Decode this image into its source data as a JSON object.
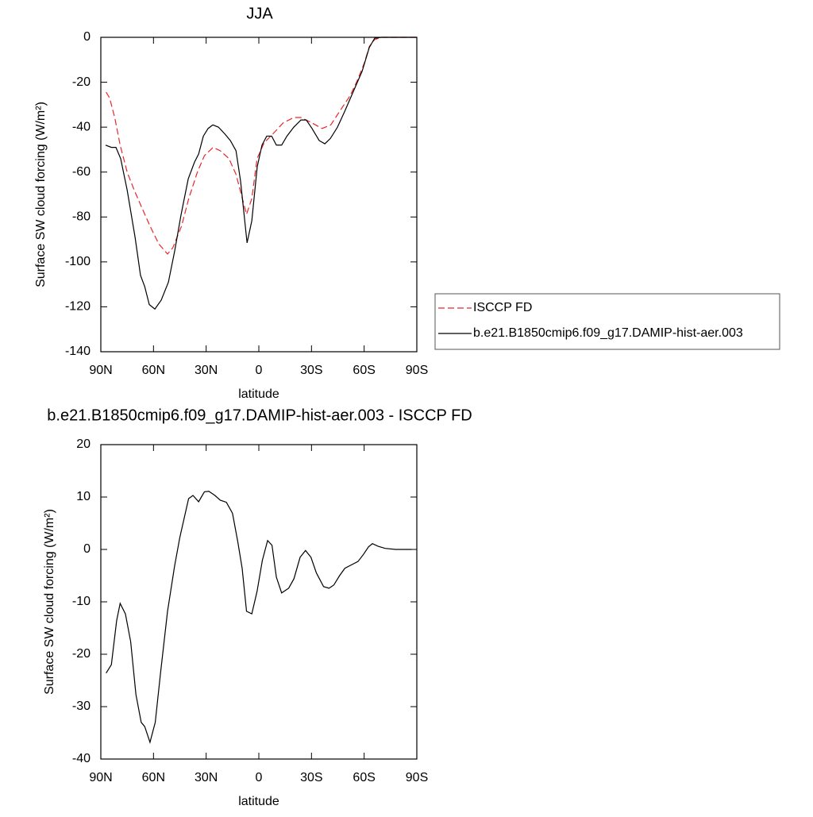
{
  "chart_data": [
    {
      "type": "line",
      "title": "JJA",
      "xlabel": "latitude",
      "ylabel": "Surface SW cloud forcing (W/m²)",
      "xlim": [
        90,
        -90
      ],
      "xticks": [
        {
          "value": 90,
          "label": "90N"
        },
        {
          "value": 60,
          "label": "60N"
        },
        {
          "value": 30,
          "label": "30N"
        },
        0,
        {
          "value": -30,
          "label": "30S"
        },
        {
          "value": -60,
          "label": "60S"
        },
        {
          "value": -90,
          "label": "90S"
        }
      ],
      "ylim": [
        -140,
        0
      ],
      "yticks": [
        0,
        -20,
        -40,
        -60,
        -80,
        -100,
        -120,
        -140
      ],
      "legend": "right",
      "series": [
        {
          "name": "ISCCP FD",
          "color": "#e8262a",
          "line_style": "dashed",
          "x": [
            87,
            85,
            82,
            79,
            75,
            71,
            66,
            62,
            57,
            52,
            49,
            44,
            40,
            35,
            31,
            26,
            22,
            17,
            13,
            10,
            7,
            4,
            1,
            -3,
            -8,
            -14,
            -20,
            -24,
            -30,
            -36,
            -41,
            -46,
            -52,
            -56,
            -60,
            -63,
            -66,
            -70,
            -90
          ],
          "values": [
            -24.4,
            -27,
            -36,
            -48,
            -60,
            -68,
            -77,
            -84,
            -92,
            -96.5,
            -93.7,
            -84,
            -72,
            -60,
            -52.7,
            -49,
            -50.5,
            -54,
            -61,
            -70,
            -78.8,
            -71.8,
            -54,
            -47,
            -43,
            -38,
            -35.7,
            -35.7,
            -38,
            -40.6,
            -39,
            -33,
            -26,
            -19.4,
            -11.7,
            -4,
            -1,
            0,
            0
          ]
        },
        {
          "name": "b.e21.B1850cmip6.f09_g17.DAMIP-hist-aer.003",
          "color": "#000000",
          "line_style": "solid",
          "x": [
            87.3,
            84,
            81.4,
            78.7,
            75,
            70.5,
            67.4,
            65,
            62.4,
            59.2,
            55.6,
            51.5,
            47.9,
            44.3,
            40.2,
            36.6,
            34.3,
            31.6,
            28.9,
            26.2,
            23,
            19.4,
            16.2,
            13,
            10.4,
            6.7,
            4,
            0.9,
            -1.8,
            -4.5,
            -7.3,
            -10,
            -13,
            -16,
            -19.9,
            -24,
            -27,
            -30.3,
            -34.4,
            -37.6,
            -40.8,
            -44.8,
            -48.9,
            -53.9,
            -58.9,
            -62.9,
            -66,
            -69.7,
            -90
          ],
          "values": [
            -48,
            -49,
            -49,
            -54,
            -68,
            -89,
            -106,
            -111,
            -119,
            -121,
            -117,
            -109,
            -95,
            -79,
            -63,
            -55.5,
            -52,
            -44,
            -40.6,
            -39,
            -40,
            -43,
            -46,
            -50.5,
            -64,
            -91.5,
            -81.7,
            -57.6,
            -48,
            -44,
            -44,
            -48,
            -48,
            -44,
            -40,
            -36.8,
            -36.8,
            -40.6,
            -46,
            -47.4,
            -45,
            -40,
            -33,
            -24,
            -15,
            -4.6,
            -0.4,
            0,
            0
          ]
        }
      ]
    },
    {
      "type": "line",
      "title": "b.e21.B1850cmip6.f09_g17.DAMIP-hist-aer.003 - ISCCP FD",
      "xlabel": "latitude",
      "ylabel": "Surface SW cloud forcing (W/m²)",
      "xlim": [
        90,
        -90
      ],
      "xticks": [
        {
          "value": 90,
          "label": "90N"
        },
        {
          "value": 60,
          "label": "60N"
        },
        {
          "value": 30,
          "label": "30N"
        },
        0,
        {
          "value": -30,
          "label": "30S"
        },
        {
          "value": -60,
          "label": "60S"
        },
        {
          "value": -90,
          "label": "90S"
        }
      ],
      "ylim": [
        -40,
        20
      ],
      "yticks": [
        20,
        10,
        0,
        -10,
        -20,
        -30,
        -40
      ],
      "series": [
        {
          "color": "#000000",
          "line_style": "solid",
          "x": [
            87,
            84,
            81,
            79,
            76,
            73,
            70,
            67,
            65,
            62,
            59,
            56,
            52,
            48,
            45,
            40,
            37.5,
            34.3,
            31,
            28.5,
            25,
            22,
            18.5,
            15,
            12,
            9.5,
            7,
            4,
            1,
            -2,
            -5,
            -7.5,
            -10,
            -13,
            -17,
            -20,
            -23.5,
            -26.6,
            -29.7,
            -32.8,
            -36.9,
            -40,
            -42.7,
            -46,
            -49,
            -53,
            -56.5,
            -59.7,
            -62.5,
            -64.7,
            -68,
            -72,
            -78,
            -87
          ],
          "values": [
            -23.6,
            -22,
            -13.6,
            -10.3,
            -12.3,
            -17.6,
            -27.7,
            -33,
            -33.8,
            -36.8,
            -33,
            -23.6,
            -11.8,
            -3.2,
            2.3,
            9.7,
            10.3,
            9.1,
            11,
            11.1,
            10.3,
            9.4,
            9,
            6.9,
            1.5,
            -3.6,
            -11.8,
            -12.3,
            -8,
            -2.1,
            1.7,
            0.8,
            -5.3,
            -8.3,
            -7.4,
            -5.6,
            -1.5,
            -0.2,
            -1.5,
            -4.5,
            -7.1,
            -7.4,
            -6.8,
            -5,
            -3.6,
            -2.9,
            -2.3,
            -0.9,
            0.5,
            1.1,
            0.6,
            0.2,
            0,
            0
          ]
        }
      ]
    }
  ]
}
